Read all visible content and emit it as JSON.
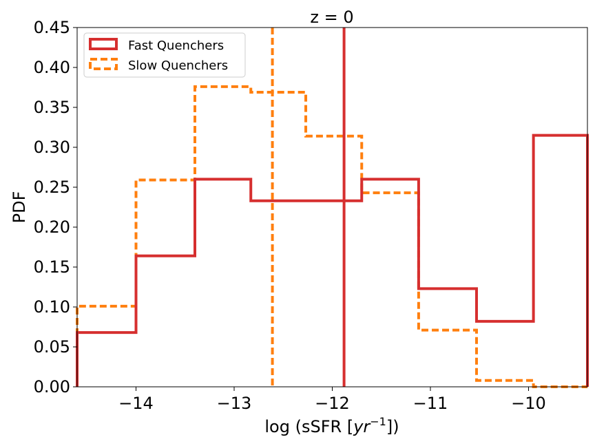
{
  "chart_data": {
    "type": "histogram",
    "title": "z = 0",
    "xlabel_prefix": "log (sSFR [",
    "xlabel_var": "yr",
    "xlabel_exp": "−1",
    "xlabel_suffix": "])",
    "ylabel": "PDF",
    "xlim": [
      -14.6,
      -9.4
    ],
    "ylim": [
      0,
      0.45
    ],
    "xticks": [
      -14,
      -13,
      -12,
      -11,
      -10
    ],
    "xtick_labels": [
      "−14",
      "−13",
      "−12",
      "−11",
      "−10"
    ],
    "yticks": [
      0.0,
      0.05,
      0.1,
      0.15,
      0.2,
      0.25,
      0.3,
      0.35,
      0.4,
      0.45
    ],
    "ytick_labels": [
      "0.00",
      "0.05",
      "0.10",
      "0.15",
      "0.20",
      "0.25",
      "0.30",
      "0.35",
      "0.40",
      "0.45"
    ],
    "legend_position": "top-left",
    "series": [
      {
        "name": "Fast Quenchers",
        "color": "#d62f2f",
        "style": "solid",
        "bin_edges": [
          -14.6,
          -14.0,
          -13.4,
          -12.83,
          -12.27,
          -11.7,
          -11.12,
          -10.53,
          -9.95,
          -9.4
        ],
        "values": [
          0.068,
          0.164,
          0.26,
          0.233,
          0.233,
          0.26,
          0.123,
          0.082,
          0.315
        ],
        "median": -11.88
      },
      {
        "name": "Slow Quenchers",
        "color": "#ff7f0e",
        "style": "dashed",
        "bin_edges": [
          -14.6,
          -14.0,
          -13.4,
          -12.83,
          -12.27,
          -11.7,
          -11.12,
          -10.53,
          -9.95,
          -9.4
        ],
        "values": [
          0.101,
          0.259,
          0.376,
          0.369,
          0.314,
          0.243,
          0.071,
          0.008,
          0.0
        ],
        "median": -12.61
      }
    ]
  }
}
